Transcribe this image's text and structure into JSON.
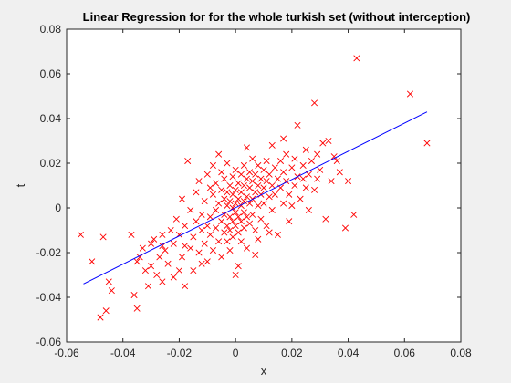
{
  "chart_data": {
    "type": "scatter",
    "title": "Linear Regression for for the whole turkish set (without interception)",
    "xlabel": "x",
    "ylabel": "t",
    "xlim": [
      -0.06,
      0.08
    ],
    "ylim": [
      -0.06,
      0.08
    ],
    "x_ticks": [
      -0.06,
      -0.04,
      -0.02,
      0,
      0.02,
      0.04,
      0.06,
      0.08
    ],
    "y_ticks": [
      -0.06,
      -0.04,
      -0.02,
      0,
      0.02,
      0.04,
      0.06,
      0.08
    ],
    "x_tick_labels": [
      "-0.06",
      "-0.04",
      "-0.02",
      "0",
      "0.02",
      "0.04",
      "0.06",
      "0.08"
    ],
    "y_tick_labels": [
      "-0.06",
      "-0.04",
      "-0.02",
      "0",
      "0.02",
      "0.04",
      "0.06",
      "0.08"
    ],
    "grid": false,
    "marker_color": "#ff0000",
    "line_color": "#0000ff",
    "marker": "x",
    "scatter": [
      [
        -0.055,
        -0.012
      ],
      [
        -0.051,
        -0.024
      ],
      [
        -0.048,
        -0.049
      ],
      [
        -0.047,
        -0.013
      ],
      [
        -0.046,
        -0.046
      ],
      [
        -0.045,
        -0.033
      ],
      [
        -0.044,
        -0.037
      ],
      [
        -0.037,
        -0.012
      ],
      [
        -0.036,
        -0.039
      ],
      [
        -0.035,
        -0.045
      ],
      [
        -0.035,
        -0.024
      ],
      [
        -0.034,
        -0.022
      ],
      [
        -0.033,
        -0.018
      ],
      [
        -0.032,
        -0.028
      ],
      [
        -0.031,
        -0.035
      ],
      [
        -0.03,
        -0.016
      ],
      [
        -0.03,
        -0.026
      ],
      [
        -0.029,
        -0.014
      ],
      [
        -0.028,
        -0.03
      ],
      [
        -0.027,
        -0.022
      ],
      [
        -0.026,
        -0.012
      ],
      [
        -0.026,
        -0.033
      ],
      [
        -0.025,
        -0.019
      ],
      [
        -0.024,
        -0.025
      ],
      [
        -0.023,
        -0.01
      ],
      [
        -0.022,
        -0.016
      ],
      [
        -0.021,
        -0.005
      ],
      [
        -0.02,
        -0.028
      ],
      [
        -0.02,
        -0.012
      ],
      [
        -0.019,
        0.004
      ],
      [
        -0.019,
        -0.022
      ],
      [
        -0.018,
        -0.035
      ],
      [
        -0.018,
        -0.008
      ],
      [
        -0.017,
        0.021
      ],
      [
        -0.016,
        -0.018
      ],
      [
        -0.016,
        -0.001
      ],
      [
        -0.015,
        -0.013
      ],
      [
        -0.015,
        -0.028
      ],
      [
        -0.014,
        0.007
      ],
      [
        -0.014,
        -0.006
      ],
      [
        -0.013,
        -0.02
      ],
      [
        -0.013,
        0.012
      ],
      [
        -0.012,
        -0.01
      ],
      [
        -0.012,
        -0.003
      ],
      [
        -0.011,
        -0.016
      ],
      [
        -0.011,
        0.003
      ],
      [
        -0.01,
        -0.024
      ],
      [
        -0.01,
        -0.008
      ],
      [
        -0.01,
        0.015
      ],
      [
        -0.009,
        -0.004
      ],
      [
        -0.009,
        -0.012
      ],
      [
        -0.008,
        0.006
      ],
      [
        -0.008,
        -0.019
      ],
      [
        -0.008,
        0.019
      ],
      [
        -0.007,
        -0.001
      ],
      [
        -0.007,
        -0.009
      ],
      [
        -0.007,
        0.011
      ],
      [
        -0.006,
        -0.015
      ],
      [
        -0.006,
        0.002
      ],
      [
        -0.006,
        0.024
      ],
      [
        -0.005,
        -0.006
      ],
      [
        -0.005,
        0.008
      ],
      [
        -0.005,
        -0.022
      ],
      [
        -0.005,
        0.016
      ],
      [
        -0.004,
        -0.003
      ],
      [
        -0.004,
        0.004
      ],
      [
        -0.004,
        -0.011
      ],
      [
        -0.004,
        0.013
      ],
      [
        -0.003,
        -0.008
      ],
      [
        -0.003,
        0.001
      ],
      [
        -0.003,
        0.007
      ],
      [
        -0.003,
        -0.015
      ],
      [
        -0.003,
        0.02
      ],
      [
        -0.002,
        -0.004
      ],
      [
        -0.002,
        0.003
      ],
      [
        -0.002,
        0.01
      ],
      [
        -0.002,
        -0.01
      ],
      [
        -0.002,
        -0.019
      ],
      [
        -0.001,
        0.0
      ],
      [
        -0.001,
        0.006
      ],
      [
        -0.001,
        -0.006
      ],
      [
        -0.001,
        0.014
      ],
      [
        -0.001,
        -0.013
      ],
      [
        0.0,
        0.002
      ],
      [
        0.0,
        -0.002
      ],
      [
        0.0,
        0.008
      ],
      [
        0.0,
        -0.008
      ],
      [
        0.0,
        0.017
      ],
      [
        0.0,
        -0.03
      ],
      [
        0.001,
        0.004
      ],
      [
        0.001,
        -0.004
      ],
      [
        0.001,
        0.011
      ],
      [
        0.001,
        -0.011
      ],
      [
        0.001,
        -0.026
      ],
      [
        0.002,
        0.001
      ],
      [
        0.002,
        0.007
      ],
      [
        0.002,
        -0.006
      ],
      [
        0.002,
        0.015
      ],
      [
        0.002,
        -0.015
      ],
      [
        0.003,
        0.003
      ],
      [
        0.003,
        -0.002
      ],
      [
        0.003,
        0.01
      ],
      [
        0.003,
        0.019
      ],
      [
        0.003,
        -0.009
      ],
      [
        0.004,
        0.005
      ],
      [
        0.004,
        -0.004
      ],
      [
        0.004,
        0.013
      ],
      [
        0.004,
        0.027
      ],
      [
        0.004,
        -0.018
      ],
      [
        0.005,
        0.002
      ],
      [
        0.005,
        0.009
      ],
      [
        0.005,
        -0.007
      ],
      [
        0.005,
        0.016
      ],
      [
        0.006,
        0.004
      ],
      [
        0.006,
        0.012
      ],
      [
        0.006,
        -0.003
      ],
      [
        0.006,
        0.022
      ],
      [
        0.007,
        0.007
      ],
      [
        0.007,
        -0.01
      ],
      [
        0.007,
        0.015
      ],
      [
        0.008,
        0.01
      ],
      [
        0.008,
        0.001
      ],
      [
        0.008,
        0.019
      ],
      [
        0.008,
        -0.014
      ],
      [
        0.009,
        0.006
      ],
      [
        0.009,
        0.013
      ],
      [
        0.009,
        -0.005
      ],
      [
        0.01,
        0.009
      ],
      [
        0.01,
        0.017
      ],
      [
        0.01,
        0.002
      ],
      [
        0.011,
        0.012
      ],
      [
        0.011,
        -0.008
      ],
      [
        0.011,
        0.021
      ],
      [
        0.012,
        0.005
      ],
      [
        0.012,
        0.015
      ],
      [
        0.013,
        0.01
      ],
      [
        0.013,
        0.028
      ],
      [
        0.013,
        -0.001
      ],
      [
        0.014,
        0.018
      ],
      [
        0.014,
        0.006
      ],
      [
        0.015,
        0.013
      ],
      [
        0.015,
        -0.012
      ],
      [
        0.016,
        0.021
      ],
      [
        0.016,
        0.009
      ],
      [
        0.017,
        0.016
      ],
      [
        0.017,
        0.002
      ],
      [
        0.018,
        0.012
      ],
      [
        0.018,
        0.024
      ],
      [
        0.019,
        0.006
      ],
      [
        0.019,
        -0.006
      ],
      [
        0.02,
        0.018
      ],
      [
        0.021,
        0.01
      ],
      [
        0.021,
        0.022
      ],
      [
        0.022,
        0.014
      ],
      [
        0.022,
        0.037
      ],
      [
        0.023,
        0.004
      ],
      [
        0.024,
        0.019
      ],
      [
        0.025,
        0.009
      ],
      [
        0.025,
        0.026
      ],
      [
        0.026,
        0.015
      ],
      [
        0.027,
        0.021
      ],
      [
        0.028,
        0.047
      ],
      [
        0.028,
        0.008
      ],
      [
        0.029,
        0.024
      ],
      [
        0.03,
        0.017
      ],
      [
        0.031,
        0.029
      ],
      [
        0.032,
        -0.005
      ],
      [
        0.033,
        0.03
      ],
      [
        0.034,
        0.012
      ],
      [
        0.036,
        0.021
      ],
      [
        0.037,
        0.016
      ],
      [
        0.039,
        -0.009
      ],
      [
        0.04,
        0.012
      ],
      [
        0.042,
        -0.003
      ],
      [
        0.043,
        0.067
      ],
      [
        0.062,
        0.051
      ],
      [
        0.068,
        0.029
      ],
      [
        -0.026,
        -0.017
      ],
      [
        -0.022,
        -0.031
      ],
      [
        -0.018,
        -0.017
      ],
      [
        -0.012,
        -0.025
      ],
      [
        -0.009,
        0.009
      ],
      [
        0.007,
        -0.021
      ],
      [
        0.012,
        -0.011
      ],
      [
        0.017,
        0.031
      ],
      [
        0.02,
        0.001
      ],
      [
        0.024,
        0.013
      ],
      [
        0.026,
        -0.001
      ],
      [
        0.029,
        0.013
      ],
      [
        0.035,
        0.023
      ]
    ],
    "fit_line": {
      "x": [
        -0.054,
        0.068
      ],
      "y": [
        -0.034,
        0.043
      ]
    }
  }
}
